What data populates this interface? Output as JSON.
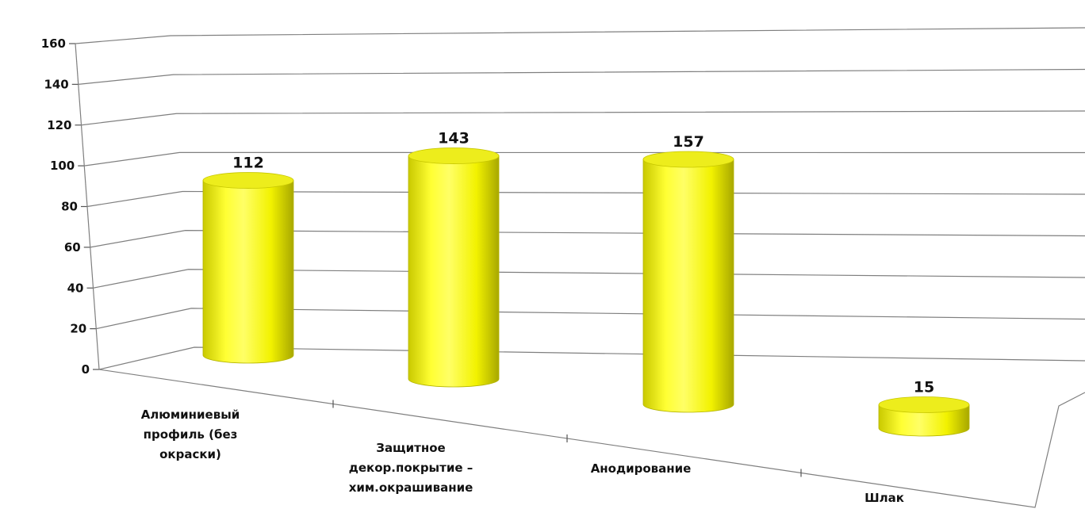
{
  "chart_data": {
    "type": "bar",
    "style": "3d-cylinder",
    "categories": [
      [
        "Алюминиевый",
        "профиль  (без",
        "окраски)"
      ],
      [
        "Защитное",
        "декор.покрытие –",
        "хим.окрашивание"
      ],
      [
        "Анодирование"
      ],
      [
        "Шлак"
      ]
    ],
    "values": [
      112,
      143,
      157,
      15
    ],
    "data_labels": [
      "112",
      "143",
      "157",
      "15"
    ],
    "y_ticks": [
      "0",
      "20",
      "40",
      "60",
      "80",
      "100",
      "120",
      "140",
      "160"
    ],
    "ylim": [
      0,
      160
    ],
    "grid": true,
    "legend": false,
    "bar_color": "#ffff00",
    "grid_color": "#7f7f7f",
    "title": "",
    "xlabel": "",
    "ylabel": ""
  }
}
